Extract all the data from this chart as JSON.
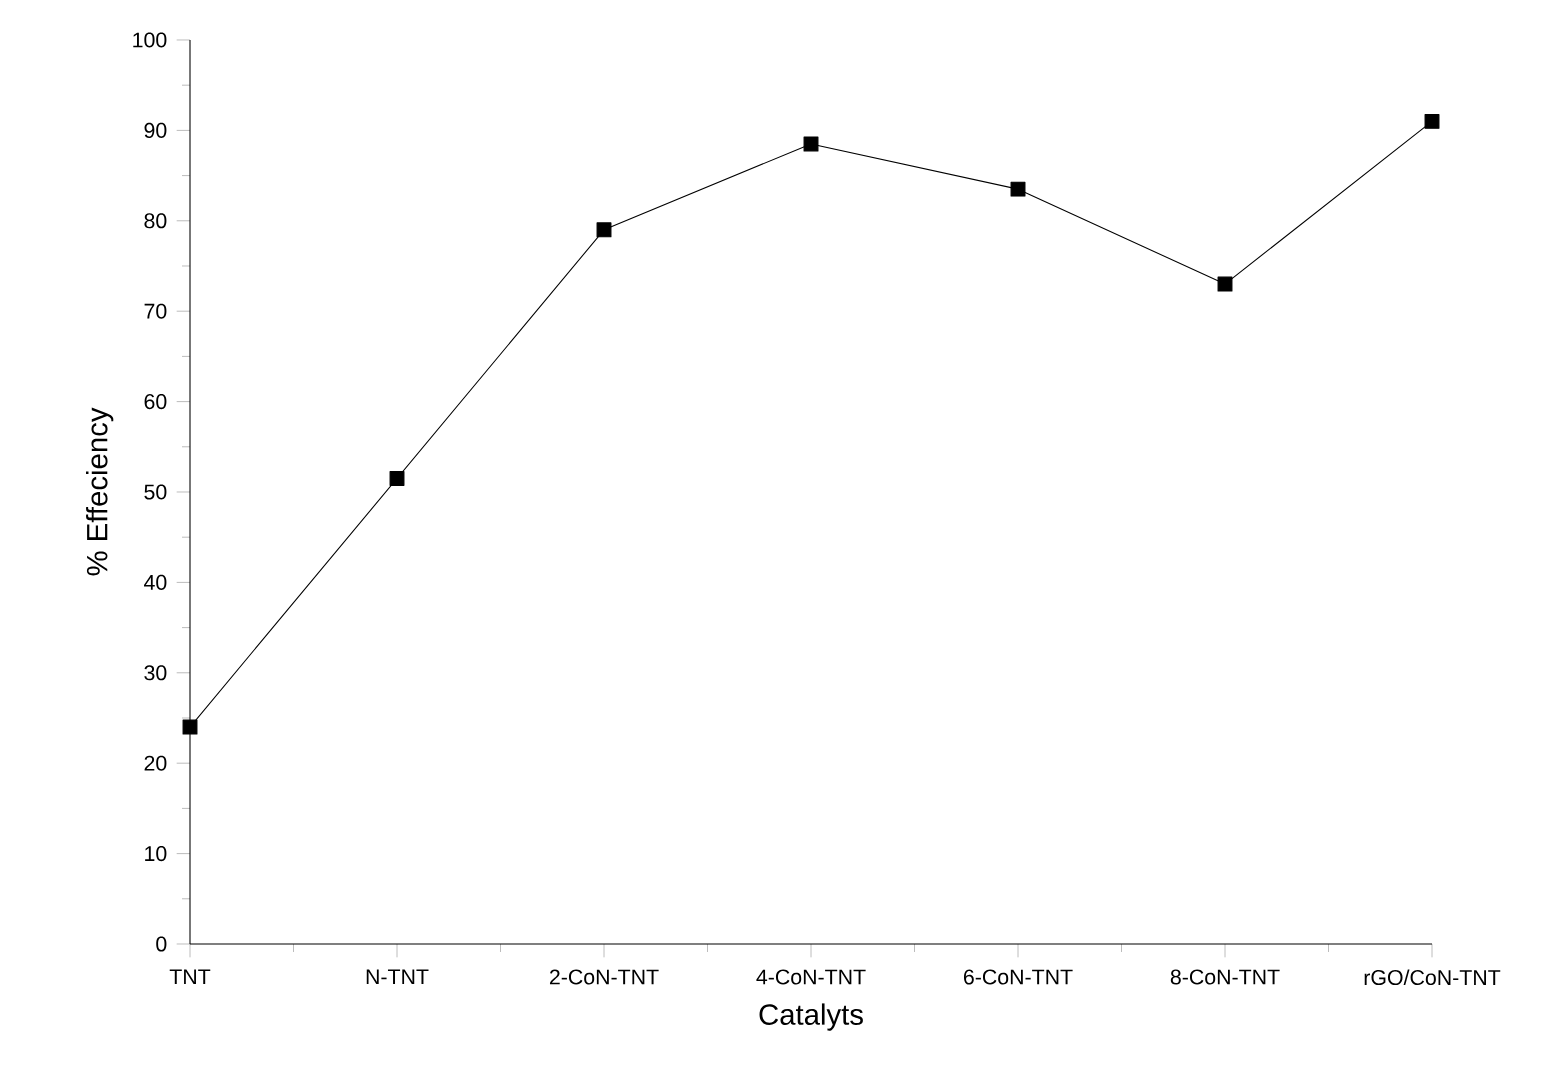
{
  "chart_data": {
    "type": "line",
    "xlabel": "Catalyts",
    "ylabel": "% Effeciency",
    "categories": [
      "TNT",
      "N-TNT",
      "2-CoN-TNT",
      "4-CoN-TNT",
      "6-CoN-TNT",
      "8-CoN-TNT",
      "rGO/CoN-TNT"
    ],
    "series": [
      {
        "color": "#000000",
        "values": [
          24,
          51.5,
          79,
          88.5,
          83.5,
          73,
          91
        ]
      }
    ],
    "ylim": [
      0,
      100
    ],
    "yticks": [
      0,
      10,
      20,
      30,
      40,
      50,
      60,
      70,
      80,
      90,
      100
    ],
    "grid": false,
    "marker": "square",
    "line_style": "solid"
  }
}
